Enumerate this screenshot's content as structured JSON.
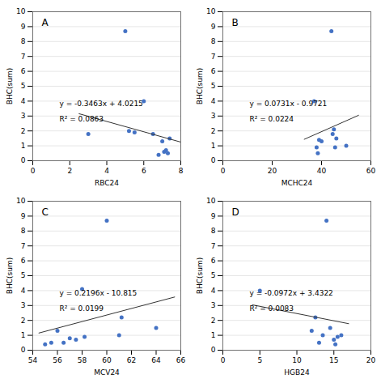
{
  "chart_data": [
    {
      "type": "scatter",
      "xlabel": "RBC24",
      "ylabel": "BHC(sum)",
      "xlim": [
        0,
        8
      ],
      "ylim": [
        0,
        10
      ],
      "xticks": [
        0,
        2,
        4,
        6,
        8
      ],
      "yticks": [
        0,
        1,
        2,
        3,
        4,
        5,
        6,
        7,
        8,
        9,
        10
      ],
      "grid": true,
      "annotations": [
        "A",
        "y = -0.3463x + 4.0215",
        "R² = 0.0863"
      ],
      "series": [
        {
          "type": "scatter",
          "color": "#4472C4",
          "x": [
            3.0,
            5.0,
            5.2,
            5.5,
            6.0,
            6.5,
            6.8,
            7.0,
            7.1,
            7.2,
            7.3,
            7.4
          ],
          "values": [
            1.8,
            8.7,
            2.0,
            1.9,
            4.0,
            1.8,
            0.4,
            1.3,
            0.6,
            0.7,
            0.5,
            1.5
          ]
        },
        {
          "type": "line",
          "color": "#333333",
          "x": [
            2.5,
            8.0
          ],
          "values": [
            3.15575,
            1.2511
          ]
        }
      ]
    },
    {
      "type": "scatter",
      "xlabel": "MCHC24",
      "ylabel": "BHC(sum)",
      "xlim": [
        0,
        60
      ],
      "ylim": [
        0,
        10
      ],
      "xticks": [
        0,
        20,
        40,
        60
      ],
      "yticks": [
        0,
        1,
        2,
        3,
        4,
        5,
        6,
        7,
        8,
        9,
        10
      ],
      "grid": true,
      "annotations": [
        "B",
        "y = 0.0731x - 0.9721",
        "R² = 0.0224"
      ],
      "series": [
        {
          "type": "scatter",
          "color": "#4472C4",
          "x": [
            37.0,
            38.0,
            38.5,
            39.0,
            40.0,
            44.0,
            44.5,
            45.0,
            45.5,
            46.0,
            50.0
          ],
          "values": [
            4.0,
            0.9,
            0.5,
            1.4,
            1.3,
            8.7,
            1.8,
            2.1,
            0.9,
            1.5,
            1.0
          ]
        },
        {
          "type": "line",
          "color": "#333333",
          "x": [
            33.0,
            55.0
          ],
          "values": [
            1.4402,
            3.0484
          ]
        }
      ]
    },
    {
      "type": "scatter",
      "xlabel": "MCV24",
      "ylabel": "BHC(sum)",
      "xlim": [
        54,
        66
      ],
      "ylim": [
        0,
        10
      ],
      "xticks": [
        54,
        56,
        58,
        60,
        62,
        64,
        66
      ],
      "yticks": [
        0,
        1,
        2,
        3,
        4,
        5,
        6,
        7,
        8,
        9,
        10
      ],
      "grid": true,
      "annotations": [
        "C",
        "y = 0.2196x - 10.815",
        "R² = 0.0199"
      ],
      "series": [
        {
          "type": "scatter",
          "color": "#4472C4",
          "x": [
            55.0,
            55.5,
            56.0,
            56.5,
            57.0,
            57.5,
            58.0,
            58.2,
            60.0,
            61.0,
            61.2,
            64.0
          ],
          "values": [
            0.4,
            0.5,
            1.3,
            0.5,
            0.8,
            0.7,
            4.1,
            0.9,
            8.7,
            1.0,
            2.2,
            1.5
          ]
        },
        {
          "type": "line",
          "color": "#333333",
          "x": [
            54.5,
            65.5
          ],
          "values": [
            1.1532,
            3.5688
          ]
        }
      ]
    },
    {
      "type": "scatter",
      "xlabel": "HGB24",
      "ylabel": "BHC(sum)",
      "xlim": [
        0,
        20
      ],
      "ylim": [
        0,
        10
      ],
      "xticks": [
        0,
        5,
        10,
        15,
        20
      ],
      "yticks": [
        0,
        1,
        2,
        3,
        4,
        5,
        6,
        7,
        8,
        9,
        10
      ],
      "grid": true,
      "annotations": [
        "D",
        "y = -0.0972x + 3.4322",
        "R² = 0.0083"
      ],
      "series": [
        {
          "type": "scatter",
          "color": "#4472C4",
          "x": [
            12.0,
            12.5,
            13.0,
            13.5,
            14.0,
            14.5,
            15.0,
            15.2,
            15.5,
            16.0,
            5.0
          ],
          "values": [
            1.3,
            2.2,
            0.5,
            1.0,
            8.7,
            1.5,
            0.7,
            0.4,
            0.9,
            1.0,
            4.0
          ]
        },
        {
          "type": "line",
          "color": "#333333",
          "x": [
            4.0,
            17.0
          ],
          "values": [
            3.0434,
            1.7798
          ]
        }
      ]
    }
  ]
}
